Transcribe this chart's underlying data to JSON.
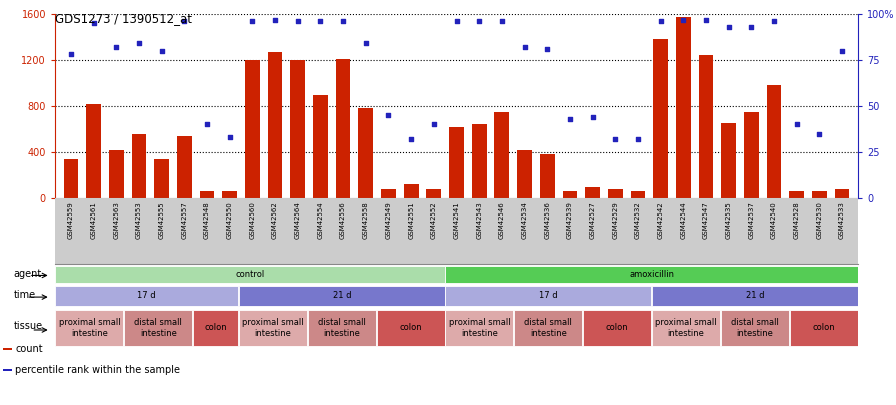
{
  "title": "GDS1273 / 1390512_at",
  "samples": [
    "GSM42559",
    "GSM42561",
    "GSM42563",
    "GSM42553",
    "GSM42555",
    "GSM42557",
    "GSM42548",
    "GSM42550",
    "GSM42560",
    "GSM42562",
    "GSM42564",
    "GSM42554",
    "GSM42556",
    "GSM42558",
    "GSM42549",
    "GSM42551",
    "GSM42552",
    "GSM42541",
    "GSM42543",
    "GSM42546",
    "GSM42534",
    "GSM42536",
    "GSM42539",
    "GSM42527",
    "GSM42529",
    "GSM42532",
    "GSM42542",
    "GSM42544",
    "GSM42547",
    "GSM42535",
    "GSM42537",
    "GSM42540",
    "GSM42528",
    "GSM42530",
    "GSM42533"
  ],
  "counts": [
    340,
    820,
    420,
    560,
    340,
    540,
    60,
    60,
    1200,
    1270,
    1200,
    900,
    1210,
    780,
    80,
    120,
    80,
    620,
    640,
    750,
    420,
    380,
    60,
    100,
    80,
    60,
    1380,
    1570,
    1240,
    650,
    750,
    980,
    60,
    60,
    80
  ],
  "percentiles": [
    78,
    95,
    82,
    84,
    80,
    96,
    40,
    33,
    96,
    97,
    96,
    96,
    96,
    84,
    45,
    32,
    40,
    96,
    96,
    96,
    82,
    81,
    43,
    44,
    32,
    32,
    96,
    97,
    97,
    93,
    93,
    96,
    40,
    35,
    80
  ],
  "bar_color": "#cc2200",
  "dot_color": "#2222bb",
  "ylim_left": [
    0,
    1600
  ],
  "ylim_right": [
    0,
    100
  ],
  "yticks_left": [
    0,
    400,
    800,
    1200,
    1600
  ],
  "yticks_right": [
    0,
    25,
    50,
    75,
    100
  ],
  "ytick_labels_right": [
    "0",
    "25",
    "50",
    "75",
    "100%"
  ],
  "annotation_rows": [
    {
      "label": "agent",
      "blocks": [
        {
          "text": "control",
          "start": 0,
          "end": 17,
          "color": "#aaddaa"
        },
        {
          "text": "amoxicillin",
          "start": 17,
          "end": 35,
          "color": "#55cc55"
        }
      ]
    },
    {
      "label": "time",
      "blocks": [
        {
          "text": "17 d",
          "start": 0,
          "end": 8,
          "color": "#aaaadd"
        },
        {
          "text": "21 d",
          "start": 8,
          "end": 17,
          "color": "#7777cc"
        },
        {
          "text": "17 d",
          "start": 17,
          "end": 26,
          "color": "#aaaadd"
        },
        {
          "text": "21 d",
          "start": 26,
          "end": 35,
          "color": "#7777cc"
        }
      ]
    },
    {
      "label": "tissue",
      "blocks": [
        {
          "text": "proximal small\nintestine",
          "start": 0,
          "end": 3,
          "color": "#ddaaaa"
        },
        {
          "text": "distal small\nintestine",
          "start": 3,
          "end": 6,
          "color": "#cc8888"
        },
        {
          "text": "colon",
          "start": 6,
          "end": 8,
          "color": "#cc5555"
        },
        {
          "text": "proximal small\nintestine",
          "start": 8,
          "end": 11,
          "color": "#ddaaaa"
        },
        {
          "text": "distal small\nintestine",
          "start": 11,
          "end": 14,
          "color": "#cc8888"
        },
        {
          "text": "colon",
          "start": 14,
          "end": 17,
          "color": "#cc5555"
        },
        {
          "text": "proximal small\nintestine",
          "start": 17,
          "end": 20,
          "color": "#ddaaaa"
        },
        {
          "text": "distal small\nintestine",
          "start": 20,
          "end": 23,
          "color": "#cc8888"
        },
        {
          "text": "colon",
          "start": 23,
          "end": 26,
          "color": "#cc5555"
        },
        {
          "text": "proximal small\nintestine",
          "start": 26,
          "end": 29,
          "color": "#ddaaaa"
        },
        {
          "text": "distal small\nintestine",
          "start": 29,
          "end": 32,
          "color": "#cc8888"
        },
        {
          "text": "colon",
          "start": 32,
          "end": 35,
          "color": "#cc5555"
        }
      ]
    }
  ],
  "legend_items": [
    {
      "color": "#cc2200",
      "label": "count"
    },
    {
      "color": "#2222bb",
      "label": "percentile rank within the sample"
    }
  ],
  "xtick_bg_color": "#cccccc",
  "grid_color": "black",
  "grid_linestyle": "dotted"
}
